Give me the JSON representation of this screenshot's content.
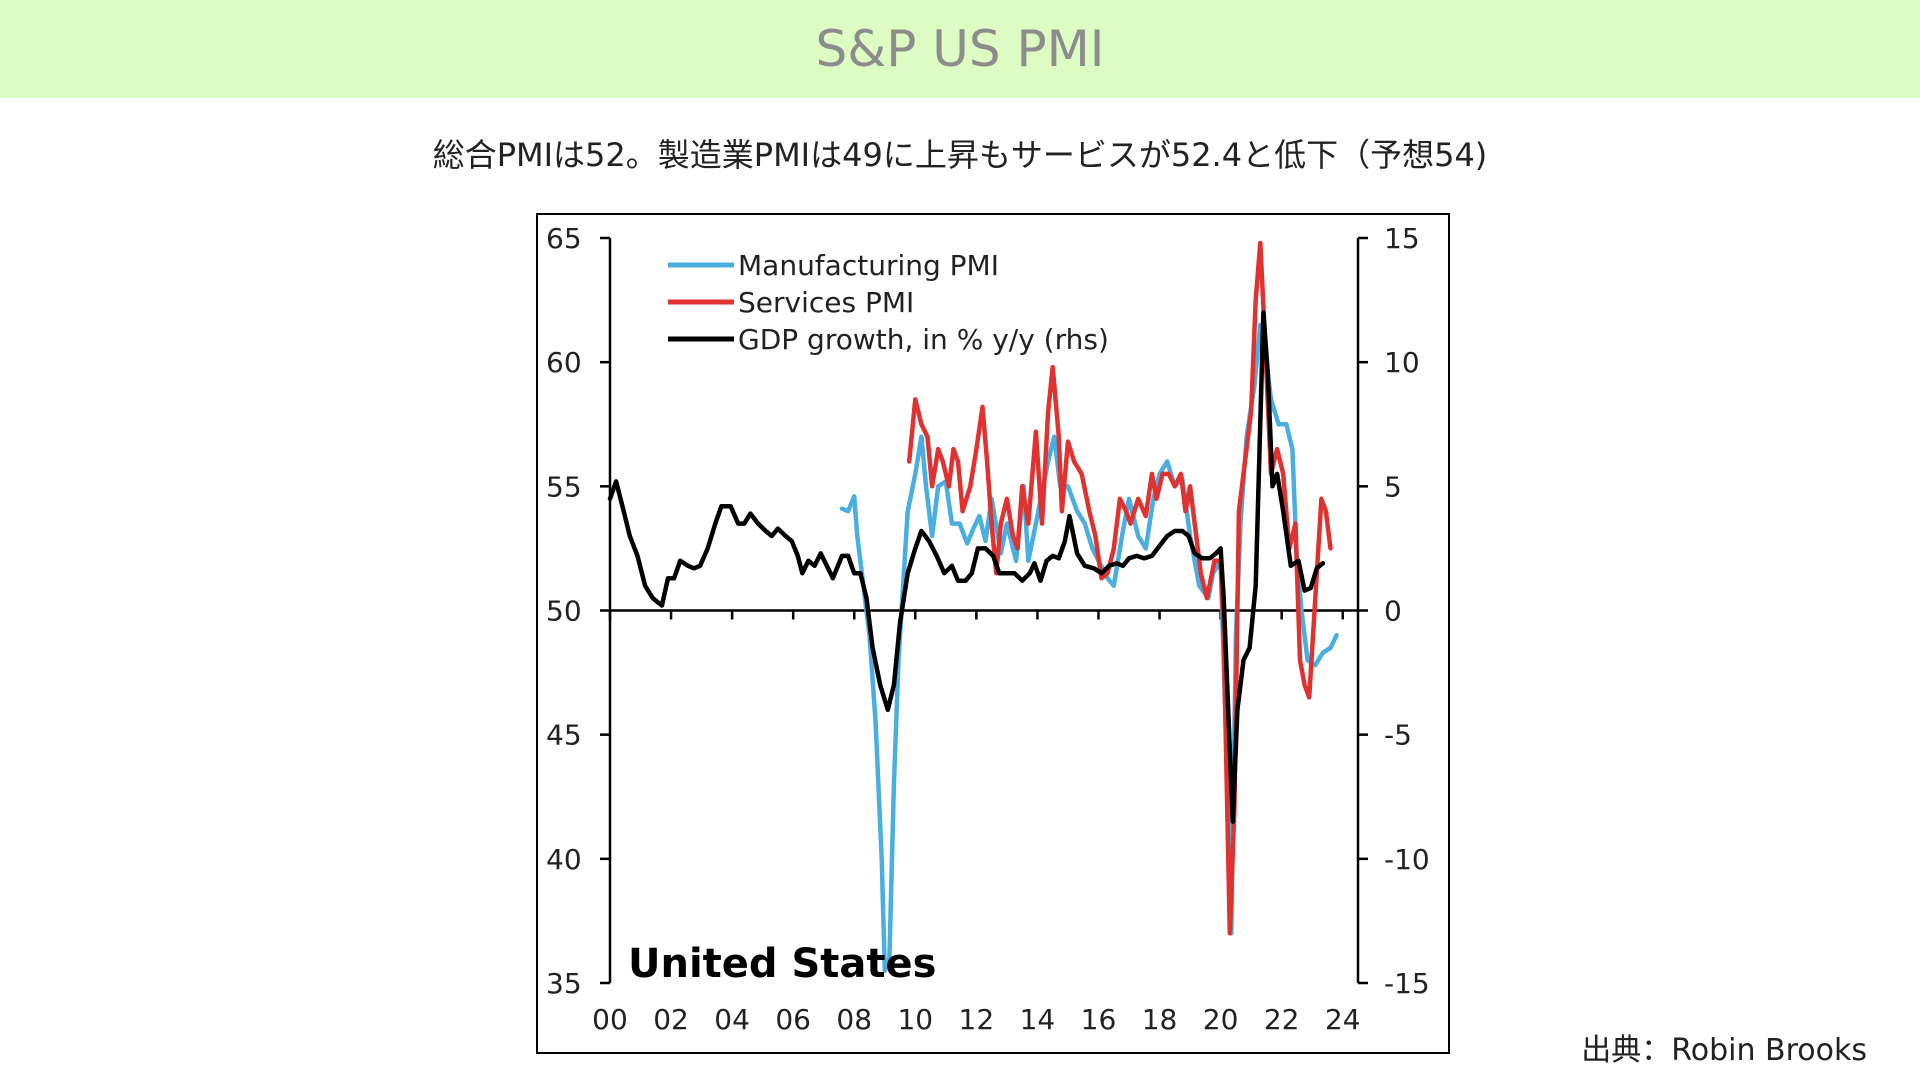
{
  "header": {
    "title": "S&P US PMI"
  },
  "subtitle": "総合PMIは52。製造業PMIは49に上昇もサービスが52.4と低下（予想54)",
  "source": "出典：Robin Brooks",
  "chart_data": {
    "type": "line",
    "annotation": "United States",
    "x_tick_labels": [
      "00",
      "02",
      "04",
      "06",
      "08",
      "10",
      "12",
      "14",
      "16",
      "18",
      "20",
      "22",
      "24"
    ],
    "x_tick_values": [
      2000,
      2002,
      2004,
      2006,
      2008,
      2010,
      2012,
      2014,
      2016,
      2018,
      2020,
      2022,
      2024
    ],
    "xlim": [
      2000,
      2024.5
    ],
    "ylim_left": [
      35,
      65
    ],
    "ylim_right": [
      -15,
      15
    ],
    "y_ticks_left": [
      "35",
      "40",
      "45",
      "50",
      "55",
      "60",
      "65"
    ],
    "y_ticks_right": [
      "-15",
      "-10",
      "-5",
      "0",
      "5",
      "10",
      "15"
    ],
    "legend_position": "top-left",
    "series": [
      {
        "name": "Manufacturing PMI",
        "axis": "left",
        "color": "#4aaee0",
        "points": [
          [
            2007.6,
            54.1
          ],
          [
            2007.8,
            54.0
          ],
          [
            2008.0,
            54.6
          ],
          [
            2008.1,
            53.0
          ],
          [
            2008.3,
            51.0
          ],
          [
            2008.5,
            49.0
          ],
          [
            2008.7,
            45.5
          ],
          [
            2008.9,
            40.0
          ],
          [
            2009.0,
            35.5
          ],
          [
            2009.15,
            36.0
          ],
          [
            2009.3,
            43.0
          ],
          [
            2009.45,
            48.0
          ],
          [
            2009.6,
            51.0
          ],
          [
            2009.75,
            54.0
          ],
          [
            2010.0,
            55.5
          ],
          [
            2010.2,
            57.0
          ],
          [
            2010.35,
            55.0
          ],
          [
            2010.55,
            53.0
          ],
          [
            2010.75,
            55.0
          ],
          [
            2011.0,
            55.2
          ],
          [
            2011.2,
            53.5
          ],
          [
            2011.45,
            53.5
          ],
          [
            2011.7,
            52.7
          ],
          [
            2011.9,
            53.3
          ],
          [
            2012.1,
            53.8
          ],
          [
            2012.3,
            52.8
          ],
          [
            2012.5,
            54.5
          ],
          [
            2012.8,
            52.3
          ],
          [
            2013.0,
            53.5
          ],
          [
            2013.3,
            52.0
          ],
          [
            2013.55,
            55.0
          ],
          [
            2013.7,
            52.0
          ],
          [
            2014.0,
            53.8
          ],
          [
            2014.35,
            56.0
          ],
          [
            2014.55,
            57.0
          ],
          [
            2014.75,
            55.0
          ],
          [
            2015.0,
            55.0
          ],
          [
            2015.3,
            54.0
          ],
          [
            2015.55,
            53.5
          ],
          [
            2015.8,
            52.5
          ],
          [
            2016.0,
            52.0
          ],
          [
            2016.3,
            51.3
          ],
          [
            2016.5,
            51.0
          ],
          [
            2016.8,
            53.2
          ],
          [
            2017.0,
            54.5
          ],
          [
            2017.3,
            53.0
          ],
          [
            2017.55,
            52.5
          ],
          [
            2017.8,
            54.5
          ],
          [
            2018.0,
            55.5
          ],
          [
            2018.25,
            56.0
          ],
          [
            2018.5,
            55.0
          ],
          [
            2018.75,
            55.3
          ],
          [
            2019.0,
            53.0
          ],
          [
            2019.3,
            51.0
          ],
          [
            2019.6,
            50.5
          ],
          [
            2019.75,
            51.5
          ],
          [
            2020.0,
            52.0
          ],
          [
            2020.2,
            44.0
          ],
          [
            2020.35,
            37.0
          ],
          [
            2020.5,
            49.0
          ],
          [
            2020.65,
            53.5
          ],
          [
            2020.85,
            57.0
          ],
          [
            2021.1,
            59.0
          ],
          [
            2021.3,
            61.5
          ],
          [
            2021.45,
            60.5
          ],
          [
            2021.65,
            58.5
          ],
          [
            2021.9,
            57.5
          ],
          [
            2022.15,
            57.5
          ],
          [
            2022.35,
            56.5
          ],
          [
            2022.5,
            52.0
          ],
          [
            2022.65,
            50.0
          ],
          [
            2022.85,
            48.0
          ],
          [
            2023.1,
            47.8
          ],
          [
            2023.35,
            48.3
          ],
          [
            2023.6,
            48.5
          ],
          [
            2023.8,
            49.0
          ]
        ]
      },
      {
        "name": "Services PMI",
        "axis": "left",
        "color": "#e03230",
        "points": [
          [
            2009.8,
            56.0
          ],
          [
            2010.0,
            58.5
          ],
          [
            2010.2,
            57.5
          ],
          [
            2010.4,
            57.0
          ],
          [
            2010.55,
            55.0
          ],
          [
            2010.75,
            56.5
          ],
          [
            2010.9,
            56.0
          ],
          [
            2011.1,
            55.0
          ],
          [
            2011.25,
            56.5
          ],
          [
            2011.4,
            56.0
          ],
          [
            2011.55,
            54.0
          ],
          [
            2011.8,
            55.0
          ],
          [
            2012.0,
            56.5
          ],
          [
            2012.2,
            58.2
          ],
          [
            2012.35,
            56.0
          ],
          [
            2012.5,
            53.5
          ],
          [
            2012.65,
            51.5
          ],
          [
            2012.8,
            53.5
          ],
          [
            2013.0,
            54.5
          ],
          [
            2013.2,
            53.0
          ],
          [
            2013.35,
            52.5
          ],
          [
            2013.5,
            55.0
          ],
          [
            2013.7,
            53.5
          ],
          [
            2013.95,
            57.2
          ],
          [
            2014.15,
            53.5
          ],
          [
            2014.35,
            58.0
          ],
          [
            2014.5,
            59.8
          ],
          [
            2014.7,
            57.0
          ],
          [
            2014.8,
            54.0
          ],
          [
            2015.0,
            56.8
          ],
          [
            2015.2,
            56.0
          ],
          [
            2015.45,
            55.5
          ],
          [
            2015.7,
            54.0
          ],
          [
            2015.9,
            53.0
          ],
          [
            2016.1,
            51.3
          ],
          [
            2016.3,
            51.5
          ],
          [
            2016.5,
            52.5
          ],
          [
            2016.7,
            54.5
          ],
          [
            2016.9,
            54.0
          ],
          [
            2017.05,
            53.5
          ],
          [
            2017.3,
            54.5
          ],
          [
            2017.55,
            53.8
          ],
          [
            2017.75,
            55.5
          ],
          [
            2017.9,
            54.5
          ],
          [
            2018.1,
            55.5
          ],
          [
            2018.3,
            55.5
          ],
          [
            2018.5,
            55.0
          ],
          [
            2018.7,
            55.5
          ],
          [
            2018.85,
            54.0
          ],
          [
            2019.0,
            55.0
          ],
          [
            2019.15,
            53.5
          ],
          [
            2019.35,
            51.5
          ],
          [
            2019.55,
            50.5
          ],
          [
            2019.8,
            52.0
          ],
          [
            2020.0,
            52.0
          ],
          [
            2020.1,
            49.0
          ],
          [
            2020.3,
            37.0
          ],
          [
            2020.45,
            42.0
          ],
          [
            2020.6,
            54.0
          ],
          [
            2020.8,
            56.0
          ],
          [
            2021.0,
            58.0
          ],
          [
            2021.15,
            62.5
          ],
          [
            2021.3,
            64.8
          ],
          [
            2021.45,
            61.0
          ],
          [
            2021.65,
            55.5
          ],
          [
            2021.85,
            56.5
          ],
          [
            2022.05,
            55.5
          ],
          [
            2022.25,
            52.5
          ],
          [
            2022.45,
            53.5
          ],
          [
            2022.6,
            48.0
          ],
          [
            2022.75,
            47.0
          ],
          [
            2022.9,
            46.5
          ],
          [
            2023.1,
            50.5
          ],
          [
            2023.3,
            54.5
          ],
          [
            2023.45,
            54.0
          ],
          [
            2023.6,
            52.5
          ]
        ]
      },
      {
        "name": "GDP growth, in % y/y (rhs)",
        "axis": "right",
        "color": "#000000",
        "points": [
          [
            2000.0,
            4.5
          ],
          [
            2000.2,
            5.2
          ],
          [
            2000.45,
            4.0
          ],
          [
            2000.65,
            3.0
          ],
          [
            2000.9,
            2.2
          ],
          [
            2001.15,
            1.0
          ],
          [
            2001.4,
            0.5
          ],
          [
            2001.7,
            0.2
          ],
          [
            2001.9,
            1.3
          ],
          [
            2002.1,
            1.3
          ],
          [
            2002.3,
            2.0
          ],
          [
            2002.55,
            1.8
          ],
          [
            2002.75,
            1.7
          ],
          [
            2002.95,
            1.8
          ],
          [
            2003.2,
            2.5
          ],
          [
            2003.45,
            3.5
          ],
          [
            2003.65,
            4.2
          ],
          [
            2003.95,
            4.2
          ],
          [
            2004.2,
            3.5
          ],
          [
            2004.4,
            3.5
          ],
          [
            2004.6,
            3.9
          ],
          [
            2004.85,
            3.5
          ],
          [
            2005.1,
            3.2
          ],
          [
            2005.3,
            3.0
          ],
          [
            2005.5,
            3.3
          ],
          [
            2005.75,
            3.0
          ],
          [
            2005.95,
            2.8
          ],
          [
            2006.15,
            2.2
          ],
          [
            2006.3,
            1.5
          ],
          [
            2006.5,
            2.0
          ],
          [
            2006.7,
            1.8
          ],
          [
            2006.9,
            2.3
          ],
          [
            2007.1,
            1.8
          ],
          [
            2007.3,
            1.3
          ],
          [
            2007.6,
            2.2
          ],
          [
            2007.8,
            2.2
          ],
          [
            2008.0,
            1.5
          ],
          [
            2008.2,
            1.5
          ],
          [
            2008.4,
            0.5
          ],
          [
            2008.6,
            -1.5
          ],
          [
            2008.85,
            -3.0
          ],
          [
            2009.1,
            -4.0
          ],
          [
            2009.3,
            -3.0
          ],
          [
            2009.5,
            -0.5
          ],
          [
            2009.75,
            1.5
          ],
          [
            2010.0,
            2.5
          ],
          [
            2010.2,
            3.2
          ],
          [
            2010.45,
            2.8
          ],
          [
            2010.7,
            2.2
          ],
          [
            2010.95,
            1.5
          ],
          [
            2011.2,
            1.8
          ],
          [
            2011.4,
            1.2
          ],
          [
            2011.65,
            1.2
          ],
          [
            2011.85,
            1.5
          ],
          [
            2012.05,
            2.5
          ],
          [
            2012.3,
            2.5
          ],
          [
            2012.55,
            2.2
          ],
          [
            2012.75,
            1.5
          ],
          [
            2013.0,
            1.5
          ],
          [
            2013.25,
            1.5
          ],
          [
            2013.5,
            1.2
          ],
          [
            2013.75,
            1.5
          ],
          [
            2013.9,
            1.9
          ],
          [
            2014.1,
            1.2
          ],
          [
            2014.3,
            2.0
          ],
          [
            2014.5,
            2.2
          ],
          [
            2014.7,
            2.1
          ],
          [
            2014.9,
            2.8
          ],
          [
            2015.05,
            3.8
          ],
          [
            2015.3,
            2.3
          ],
          [
            2015.55,
            1.8
          ],
          [
            2015.85,
            1.7
          ],
          [
            2016.1,
            1.5
          ],
          [
            2016.35,
            1.8
          ],
          [
            2016.6,
            1.9
          ],
          [
            2016.8,
            1.8
          ],
          [
            2017.0,
            2.1
          ],
          [
            2017.25,
            2.2
          ],
          [
            2017.5,
            2.1
          ],
          [
            2017.75,
            2.2
          ],
          [
            2018.0,
            2.6
          ],
          [
            2018.25,
            3.0
          ],
          [
            2018.5,
            3.2
          ],
          [
            2018.75,
            3.2
          ],
          [
            2018.95,
            3.0
          ],
          [
            2019.15,
            2.3
          ],
          [
            2019.4,
            2.1
          ],
          [
            2019.65,
            2.1
          ],
          [
            2019.85,
            2.3
          ],
          [
            2020.0,
            2.5
          ],
          [
            2020.1,
            0.5
          ],
          [
            2020.25,
            -4.0
          ],
          [
            2020.4,
            -8.5
          ],
          [
            2020.55,
            -4.0
          ],
          [
            2020.75,
            -2.0
          ],
          [
            2020.95,
            -1.5
          ],
          [
            2021.15,
            1.0
          ],
          [
            2021.4,
            12.0
          ],
          [
            2021.55,
            9.5
          ],
          [
            2021.7,
            5.0
          ],
          [
            2021.85,
            5.5
          ],
          [
            2022.05,
            4.0
          ],
          [
            2022.3,
            1.8
          ],
          [
            2022.55,
            2.0
          ],
          [
            2022.75,
            0.8
          ],
          [
            2022.95,
            0.9
          ],
          [
            2023.15,
            1.7
          ],
          [
            2023.35,
            1.9
          ]
        ]
      }
    ]
  }
}
